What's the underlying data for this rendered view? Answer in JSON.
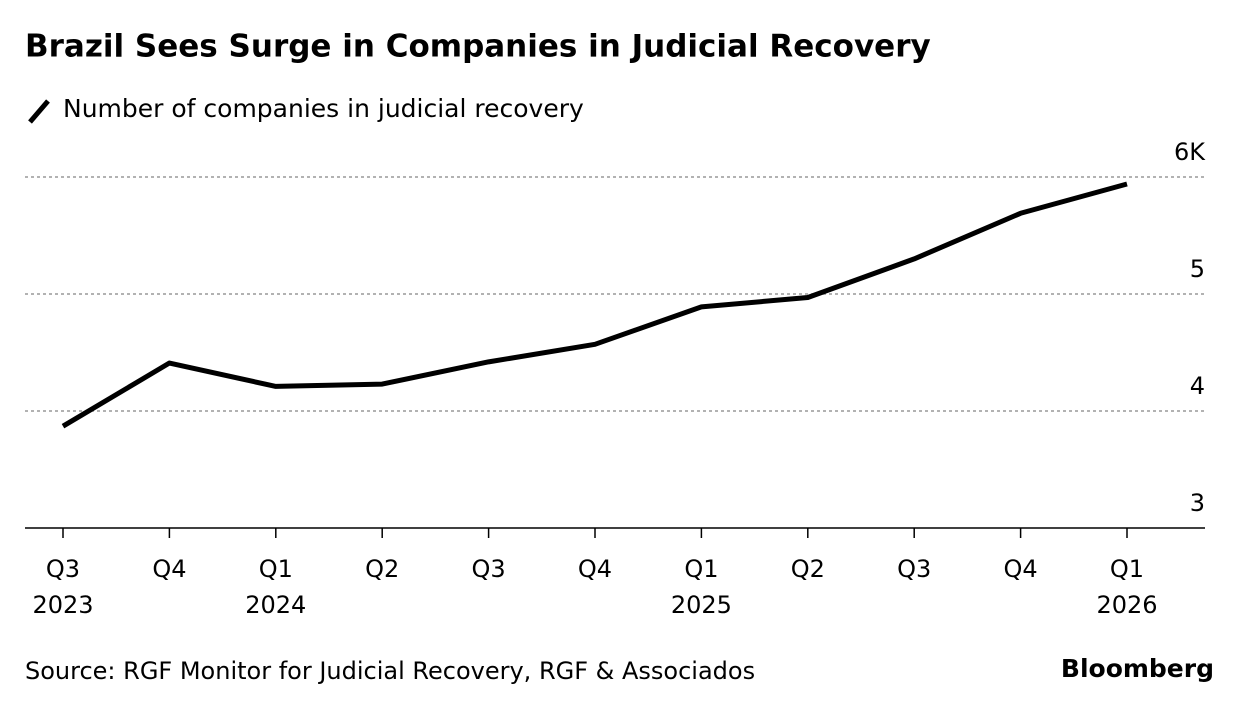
{
  "chart_data": {
    "type": "line",
    "title": "Brazil Sees Surge in Companies in Judicial Recovery",
    "categories": [
      "Q3",
      "Q4",
      "Q1",
      "Q2",
      "Q3",
      "Q4",
      "Q1",
      "Q2",
      "Q3",
      "Q4",
      "Q1"
    ],
    "category_years": [
      "2023",
      null,
      "2024",
      null,
      null,
      null,
      "2025",
      null,
      null,
      null,
      "2026"
    ],
    "series": [
      {
        "name": "Number of companies in judicial recovery",
        "color": "#000000",
        "values": [
          3.87,
          4.41,
          4.21,
          4.23,
          4.42,
          4.57,
          4.89,
          4.97,
          5.3,
          5.69,
          5.94
        ]
      }
    ],
    "ylim": [
      3,
      6.2
    ],
    "yticks": [
      3,
      4,
      5,
      {
        "value": 6,
        "label": "6K"
      }
    ],
    "grid": true,
    "source": "Source: RGF Monitor for Judicial Recovery, RGF & Associados",
    "brand": "Bloomberg"
  }
}
